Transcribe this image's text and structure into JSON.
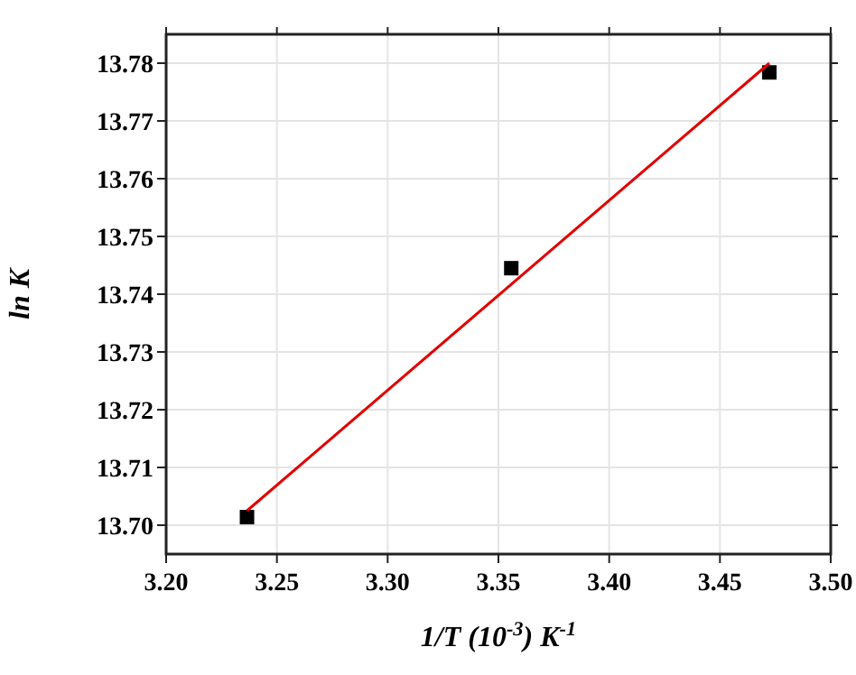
{
  "chart_data": {
    "type": "scatter",
    "xlabel": "1/T (10$^{-3}$) K$^{-1}$",
    "ylabel": "ln K",
    "xlim": [
      3.2,
      3.5
    ],
    "xticks": [
      {
        "value": 3.2,
        "label": "3.20"
      },
      3.25,
      {
        "value": 3.3,
        "label": "3.30"
      },
      3.35,
      {
        "value": 3.4,
        "label": "3.40"
      },
      3.45,
      {
        "value": 3.5,
        "label": "3.50"
      }
    ],
    "ylim": [
      13.695,
      13.785
    ],
    "yticks": [
      {
        "value": 13.7,
        "label": "13.70"
      },
      13.71,
      13.72,
      13.73,
      13.74,
      13.75,
      13.76,
      13.77,
      13.78
    ],
    "grid": true,
    "marker": "square",
    "series": [
      {
        "color": "#000000",
        "x": [
          3.2365,
          3.3558,
          3.4723
        ],
        "values": [
          13.7014,
          13.7445,
          13.7784
        ]
      },
      {
        "type": "line",
        "color": "#e00000",
        "marker": "none",
        "line_style": "solid",
        "x": [
          3.2365,
          3.4723
        ],
        "values": [
          13.7025,
          13.78
        ]
      }
    ]
  }
}
